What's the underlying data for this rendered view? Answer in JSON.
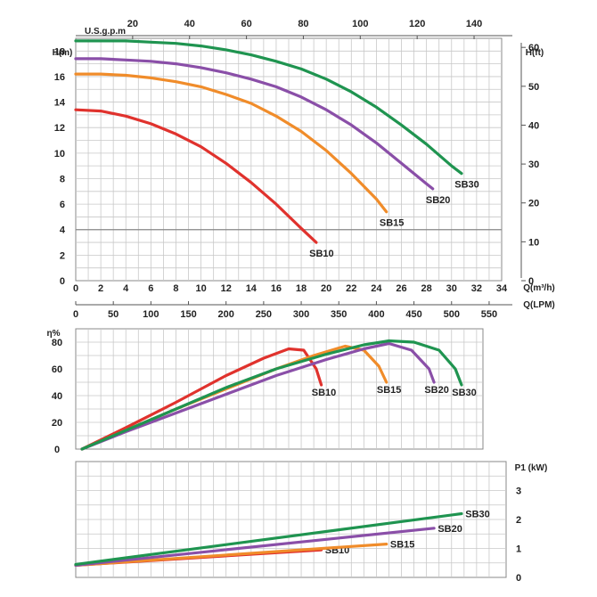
{
  "chart_data": [
    {
      "type": "line",
      "title": "",
      "ylabel": "H(m)",
      "ylabel_right": "H(ft)",
      "xlabel": "Q(m³/h)",
      "xlabel_lpm": "Q(LPM)",
      "xlabel_top": "U.S.g.p.m",
      "xlim": [
        0,
        34
      ],
      "ylim": [
        0,
        19
      ],
      "x_ticks": [
        "0",
        "2",
        "4",
        "6",
        "8",
        "10",
        "12",
        "14",
        "16",
        "18",
        "20",
        "22",
        "24",
        "26",
        "28",
        "30",
        "32",
        "34"
      ],
      "y_ticks": [
        "0",
        "2",
        "4",
        "6",
        "8",
        "10",
        "12",
        "14",
        "16",
        "18"
      ],
      "y_ticks_right": [
        "0",
        "10",
        "20",
        "30",
        "40",
        "50",
        "60"
      ],
      "lpm_ticks": [
        "0",
        "50",
        "100",
        "150",
        "200",
        "250",
        "300",
        "350",
        "400",
        "450",
        "500",
        "550"
      ],
      "gpm_ticks": [
        "20",
        "40",
        "60",
        "80",
        "100",
        "120",
        "140"
      ],
      "grid": true,
      "series": [
        {
          "name": "SB10",
          "color": "#e0322d",
          "x": [
            0,
            2,
            4,
            6,
            8,
            10,
            12,
            14,
            16,
            18,
            19.2
          ],
          "y": [
            13.4,
            13.3,
            12.9,
            12.3,
            11.5,
            10.5,
            9.2,
            7.7,
            6.0,
            4.1,
            3.0
          ]
        },
        {
          "name": "SB15",
          "color": "#f08c2a",
          "x": [
            0,
            2,
            4,
            6,
            8,
            10,
            12,
            14,
            16,
            18,
            20,
            22,
            24,
            24.8
          ],
          "y": [
            16.2,
            16.2,
            16.1,
            15.9,
            15.6,
            15.2,
            14.6,
            13.9,
            12.9,
            11.7,
            10.2,
            8.4,
            6.4,
            5.4
          ]
        },
        {
          "name": "SB20",
          "color": "#8a4fa8",
          "x": [
            0,
            2,
            4,
            6,
            8,
            10,
            12,
            14,
            16,
            18,
            20,
            22,
            24,
            26,
            28,
            28.5
          ],
          "y": [
            17.4,
            17.4,
            17.3,
            17.2,
            17.0,
            16.7,
            16.3,
            15.8,
            15.2,
            14.4,
            13.4,
            12.2,
            10.8,
            9.2,
            7.6,
            7.2
          ]
        },
        {
          "name": "SB30",
          "color": "#1f9450",
          "x": [
            0,
            2,
            4,
            6,
            8,
            10,
            12,
            14,
            16,
            18,
            20,
            22,
            24,
            26,
            28,
            30,
            30.8
          ],
          "y": [
            18.8,
            18.8,
            18.8,
            18.7,
            18.6,
            18.4,
            18.1,
            17.7,
            17.2,
            16.6,
            15.8,
            14.8,
            13.6,
            12.2,
            10.7,
            9.0,
            8.4
          ]
        }
      ]
    },
    {
      "type": "line",
      "title": "",
      "ylabel": "η%",
      "ylim": [
        0,
        90
      ],
      "y_ticks": [
        "0",
        "20",
        "40",
        "60",
        "80"
      ],
      "grid": true,
      "series": [
        {
          "name": "SB10",
          "color": "#e0322d",
          "x": [
            0.5,
            4,
            8,
            12,
            15,
            17,
            18.2,
            19.2,
            19.6
          ],
          "y": [
            0,
            16,
            35,
            55,
            68,
            75,
            74,
            60,
            48
          ]
        },
        {
          "name": "SB15",
          "color": "#f08c2a",
          "x": [
            0.5,
            4,
            8,
            12,
            16,
            19,
            21.5,
            23,
            24.2,
            24.8
          ],
          "y": [
            0,
            14,
            30,
            45,
            60,
            70,
            77,
            74,
            62,
            50
          ]
        },
        {
          "name": "SB20",
          "color": "#8a4fa8",
          "x": [
            0.5,
            4,
            8,
            12,
            16,
            20,
            23,
            25,
            26.8,
            28.2,
            28.6
          ],
          "y": [
            0,
            13,
            27,
            41,
            55,
            67,
            75,
            79,
            74,
            60,
            50
          ]
        },
        {
          "name": "SB30",
          "color": "#1f9450",
          "x": [
            0.5,
            4,
            8,
            12,
            16,
            20,
            23,
            25,
            27,
            29,
            30.3,
            30.8
          ],
          "y": [
            0,
            14,
            30,
            46,
            60,
            71,
            78,
            81,
            80,
            74,
            60,
            48
          ]
        }
      ]
    },
    {
      "type": "line",
      "title": "",
      "ylabel": "P1 (kW)",
      "ylim": [
        0,
        4
      ],
      "y_ticks": [
        "0",
        "1",
        "2",
        "3"
      ],
      "grid": true,
      "series": [
        {
          "name": "SB10",
          "color": "#e0322d",
          "x": [
            0,
            19.6
          ],
          "y": [
            0.42,
            0.95
          ]
        },
        {
          "name": "SB15",
          "color": "#f08c2a",
          "x": [
            0,
            24.8
          ],
          "y": [
            0.42,
            1.15
          ]
        },
        {
          "name": "SB20",
          "color": "#8a4fa8",
          "x": [
            0,
            28.6
          ],
          "y": [
            0.42,
            1.7
          ]
        },
        {
          "name": "SB30",
          "color": "#1f9450",
          "x": [
            0,
            30.8
          ],
          "y": [
            0.45,
            2.2
          ]
        }
      ]
    }
  ]
}
